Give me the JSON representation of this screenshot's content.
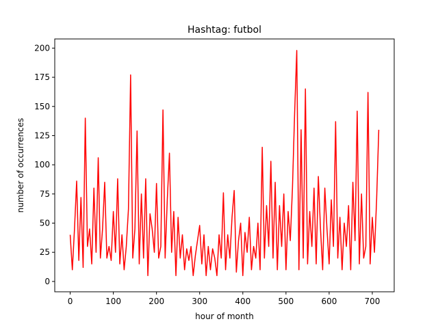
{
  "chart_data": {
    "type": "line",
    "title": "Hashtag: futbol",
    "xlabel": "hour of month",
    "ylabel": "number of occurrences",
    "x": [
      0,
      5,
      10,
      15,
      20,
      25,
      30,
      35,
      40,
      45,
      50,
      55,
      60,
      65,
      70,
      75,
      80,
      85,
      90,
      95,
      100,
      105,
      110,
      115,
      120,
      125,
      130,
      135,
      140,
      145,
      150,
      155,
      160,
      165,
      170,
      175,
      180,
      185,
      190,
      195,
      200,
      205,
      210,
      215,
      220,
      225,
      230,
      235,
      240,
      245,
      250,
      255,
      260,
      265,
      270,
      275,
      280,
      285,
      290,
      295,
      300,
      305,
      310,
      315,
      320,
      325,
      330,
      335,
      340,
      345,
      350,
      355,
      360,
      365,
      370,
      375,
      380,
      385,
      390,
      395,
      400,
      405,
      410,
      415,
      420,
      425,
      430,
      435,
      440,
      445,
      450,
      455,
      460,
      465,
      470,
      475,
      480,
      485,
      490,
      495,
      500,
      505,
      510,
      515,
      520,
      525,
      530,
      535,
      540,
      545,
      550,
      555,
      560,
      565,
      570,
      575,
      580,
      585,
      590,
      595,
      600,
      605,
      610,
      615,
      620,
      625,
      630,
      635,
      640,
      645,
      650,
      655,
      660,
      665,
      670,
      675,
      680,
      685,
      690,
      695,
      700,
      705,
      710,
      715
    ],
    "series": [
      {
        "name": "futbol",
        "color": "#ff0000",
        "values": [
          40,
          10,
          45,
          86,
          18,
          72,
          12,
          140,
          30,
          45,
          15,
          80,
          25,
          106,
          20,
          45,
          85,
          20,
          30,
          18,
          60,
          25,
          88,
          15,
          40,
          10,
          30,
          62,
          177,
          20,
          45,
          129,
          15,
          75,
          20,
          88,
          5,
          58,
          45,
          25,
          84,
          20,
          30,
          147,
          20,
          70,
          110,
          25,
          60,
          5,
          55,
          20,
          40,
          10,
          28,
          18,
          30,
          5,
          22,
          35,
          48,
          15,
          40,
          5,
          30,
          10,
          28,
          20,
          5,
          40,
          20,
          76,
          10,
          40,
          20,
          55,
          78,
          8,
          35,
          50,
          5,
          42,
          25,
          55,
          10,
          30,
          20,
          50,
          10,
          115,
          20,
          65,
          30,
          103,
          20,
          85,
          10,
          65,
          30,
          75,
          10,
          60,
          35,
          80,
          144,
          198,
          10,
          130,
          20,
          165,
          15,
          60,
          30,
          80,
          15,
          90,
          45,
          10,
          80,
          45,
          15,
          70,
          30,
          137,
          20,
          55,
          10,
          50,
          30,
          65,
          10,
          85,
          35,
          146,
          15,
          75,
          20,
          30,
          162,
          15,
          55,
          25,
          70,
          130
        ]
      }
    ],
    "xlim": [
      -35.75,
      750.75
    ],
    "ylim": [
      -8.85,
      207.85
    ],
    "xticks": [
      0,
      100,
      200,
      300,
      400,
      500,
      600,
      700
    ],
    "yticks": [
      0,
      25,
      50,
      75,
      100,
      125,
      150,
      175,
      200
    ],
    "grid": false
  }
}
